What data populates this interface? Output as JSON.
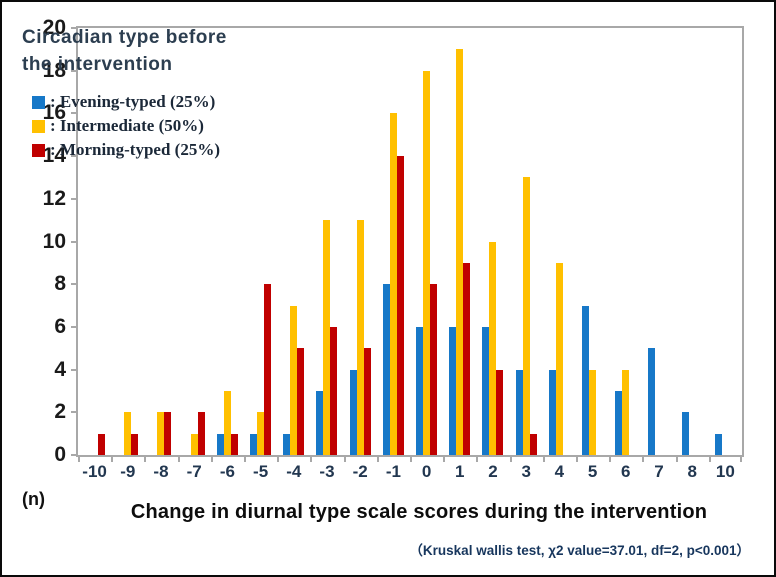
{
  "legend": {
    "title_line1": "Circadian type before",
    "title_line2": "the intervention",
    "items": [
      {
        "label": ": Evening-typed (25%)"
      },
      {
        "label": ": Intermediate (50%)"
      },
      {
        "label": ": Morning-typed (25%)"
      }
    ]
  },
  "axis": {
    "y_unit_label": "(n)"
  },
  "footer": {
    "x_title": "Change in diurnal type scale scores during the intervention",
    "stats_note": "（Kruskal wallis test, χ2 value=37.01, df=2, p<0.001）"
  },
  "colors": {
    "evening_blue": "#1778C8",
    "intermediate_yellow": "#FFC000",
    "morning_red": "#C00000",
    "axis_gray": "#a8a8a8",
    "stats_navy": "#17365d"
  },
  "chart_data": {
    "type": "bar",
    "title": "Circadian type before the intervention",
    "xlabel": "Change in diurnal type scale scores during the intervention",
    "ylabel": "(n)",
    "ylim": [
      0,
      20
    ],
    "ytick_step": 2,
    "grid": false,
    "legend_position": "top-left-inside",
    "categories": [
      "-10",
      "-9",
      "-8",
      "-7",
      "-6",
      "-5",
      "-4",
      "-3",
      "-2",
      "-1",
      "0",
      "1",
      "2",
      "3",
      "4",
      "5",
      "6",
      "7",
      "8",
      "10"
    ],
    "series": [
      {
        "name": "Evening-typed (25%)",
        "color": "#1778C8",
        "values": [
          0,
          0,
          0,
          0,
          1,
          1,
          1,
          3,
          4,
          8,
          6,
          6,
          6,
          4,
          4,
          7,
          3,
          5,
          2,
          1
        ]
      },
      {
        "name": "Intermediate (50%)",
        "color": "#FFC000",
        "values": [
          0,
          2,
          2,
          1,
          3,
          2,
          7,
          11,
          11,
          16,
          18,
          19,
          10,
          13,
          9,
          4,
          4,
          0,
          0,
          0
        ]
      },
      {
        "name": "Morning-typed (25%)",
        "color": "#C00000",
        "values": [
          1,
          1,
          2,
          2,
          1,
          8,
          5,
          6,
          5,
          14,
          8,
          9,
          4,
          1,
          0,
          0,
          0,
          0,
          0,
          0
        ]
      }
    ],
    "annotation": "（Kruskal wallis test, χ2 value=37.01, df=2, p<0.001）"
  }
}
